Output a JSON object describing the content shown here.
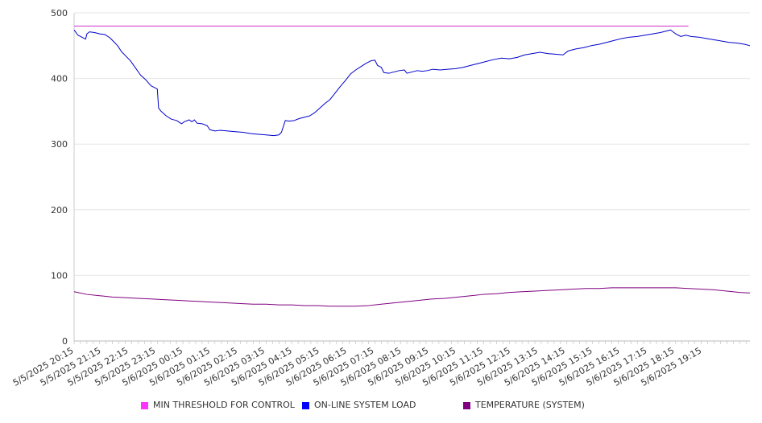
{
  "chart_data": {
    "type": "line",
    "ylim": [
      0,
      500
    ],
    "yticks": [
      0,
      100,
      200,
      300,
      400,
      500
    ],
    "grid": true,
    "legend_position": "bottom",
    "x_labels": [
      "5/5/2025 20:15",
      "5/5/2025 21:15",
      "5/5/2025 22:15",
      "5/5/2025 23:15",
      "5/6/2025 00:15",
      "5/6/2025 01:15",
      "5/6/2025 02:15",
      "5/6/2025 03:15",
      "5/6/2025 04:15",
      "5/6/2025 05:15",
      "5/6/2025 06:15",
      "5/6/2025 07:15",
      "5/6/2025 08:15",
      "5/6/2025 09:15",
      "5/6/2025 10:15",
      "5/6/2025 11:15",
      "5/6/2025 12:15",
      "5/6/2025 13:15",
      "5/6/2025 14:15",
      "5/6/2025 15:15",
      "5/6/2025 16:15",
      "5/6/2025 17:15",
      "5/6/2025 18:15",
      "5/6/2025 19:15"
    ],
    "x_range_hours": [
      0,
      24
    ],
    "series": [
      {
        "name": "MIN THRESHOLD FOR CONTROL",
        "color": "#cc33cc",
        "swatch": "#ff33ff",
        "points": [
          [
            0,
            480
          ],
          [
            24,
            480
          ]
        ]
      },
      {
        "name": "ON-LINE SYSTEM LOAD",
        "color": "#0000cc",
        "swatch": "#0000ff",
        "points": [
          [
            0,
            474
          ],
          [
            0.15,
            466
          ],
          [
            0.3,
            463
          ],
          [
            0.45,
            460
          ],
          [
            0.5,
            468
          ],
          [
            0.6,
            471
          ],
          [
            0.8,
            470
          ],
          [
            1.0,
            468
          ],
          [
            1.2,
            467
          ],
          [
            1.4,
            462
          ],
          [
            1.55,
            456
          ],
          [
            1.7,
            450
          ],
          [
            1.85,
            441
          ],
          [
            2.0,
            435
          ],
          [
            2.2,
            427
          ],
          [
            2.4,
            416
          ],
          [
            2.6,
            405
          ],
          [
            2.8,
            398
          ],
          [
            3.0,
            389
          ],
          [
            3.25,
            384
          ],
          [
            3.3,
            355
          ],
          [
            3.4,
            350
          ],
          [
            3.6,
            343
          ],
          [
            3.8,
            338
          ],
          [
            4.0,
            336
          ],
          [
            4.2,
            331
          ],
          [
            4.3,
            334
          ],
          [
            4.5,
            337
          ],
          [
            4.6,
            334
          ],
          [
            4.7,
            337
          ],
          [
            4.8,
            332
          ],
          [
            5.0,
            331
          ],
          [
            5.2,
            328
          ],
          [
            5.3,
            322
          ],
          [
            5.5,
            320
          ],
          [
            5.7,
            321
          ],
          [
            6.0,
            320
          ],
          [
            6.3,
            319
          ],
          [
            6.6,
            318
          ],
          [
            6.9,
            316
          ],
          [
            7.2,
            315
          ],
          [
            7.5,
            314
          ],
          [
            7.8,
            313
          ],
          [
            8.0,
            314
          ],
          [
            8.1,
            318
          ],
          [
            8.25,
            336
          ],
          [
            8.4,
            335
          ],
          [
            8.6,
            336
          ],
          [
            8.8,
            339
          ],
          [
            9.0,
            341
          ],
          [
            9.2,
            343
          ],
          [
            9.4,
            348
          ],
          [
            9.6,
            355
          ],
          [
            9.8,
            362
          ],
          [
            10.0,
            368
          ],
          [
            10.2,
            378
          ],
          [
            10.4,
            388
          ],
          [
            10.6,
            397
          ],
          [
            10.8,
            407
          ],
          [
            11.0,
            413
          ],
          [
            11.2,
            418
          ],
          [
            11.4,
            423
          ],
          [
            11.6,
            427
          ],
          [
            11.75,
            428
          ],
          [
            11.85,
            420
          ],
          [
            12.0,
            417
          ],
          [
            12.1,
            409
          ],
          [
            12.3,
            408
          ],
          [
            12.5,
            410
          ],
          [
            12.7,
            412
          ],
          [
            12.9,
            413
          ],
          [
            13.0,
            408
          ],
          [
            13.2,
            410
          ],
          [
            13.4,
            412
          ],
          [
            13.6,
            411
          ],
          [
            13.8,
            412
          ],
          [
            14.0,
            414
          ],
          [
            14.3,
            413
          ],
          [
            14.6,
            414
          ],
          [
            14.9,
            415
          ],
          [
            15.2,
            417
          ],
          [
            15.5,
            420
          ],
          [
            15.8,
            423
          ],
          [
            16.1,
            426
          ],
          [
            16.4,
            429
          ],
          [
            16.7,
            431
          ],
          [
            17.0,
            430
          ],
          [
            17.3,
            432
          ],
          [
            17.6,
            436
          ],
          [
            17.9,
            438
          ],
          [
            18.2,
            440
          ],
          [
            18.5,
            438
          ],
          [
            18.8,
            437
          ],
          [
            19.1,
            436
          ],
          [
            19.3,
            442
          ],
          [
            19.6,
            445
          ],
          [
            19.9,
            447
          ],
          [
            20.2,
            450
          ],
          [
            20.5,
            452
          ],
          [
            20.8,
            455
          ],
          [
            21.1,
            458
          ],
          [
            21.4,
            461
          ],
          [
            21.7,
            463
          ],
          [
            22.0,
            464
          ],
          [
            22.3,
            466
          ],
          [
            22.6,
            468
          ],
          [
            22.9,
            470
          ],
          [
            23.1,
            472
          ],
          [
            23.3,
            474
          ],
          [
            23.5,
            468
          ],
          [
            23.7,
            464
          ],
          [
            23.9,
            466
          ],
          [
            24.1,
            464
          ],
          [
            24.4,
            463
          ],
          [
            24.7,
            461
          ],
          [
            25.0,
            459
          ],
          [
            25.3,
            457
          ],
          [
            25.6,
            455
          ],
          [
            25.9,
            454
          ],
          [
            26.2,
            452
          ],
          [
            26.4,
            450
          ]
        ]
      },
      {
        "name": "TEMPERATURE (SYSTEM)",
        "color": "#800080",
        "swatch": "#800080",
        "points": [
          [
            0,
            75
          ],
          [
            0.5,
            71
          ],
          [
            1.0,
            69
          ],
          [
            1.5,
            67
          ],
          [
            2.0,
            66
          ],
          [
            2.5,
            65
          ],
          [
            3.0,
            64
          ],
          [
            3.5,
            63
          ],
          [
            4.0,
            62
          ],
          [
            4.5,
            61
          ],
          [
            5.0,
            60
          ],
          [
            5.5,
            59
          ],
          [
            6.0,
            58
          ],
          [
            6.5,
            57
          ],
          [
            7.0,
            56
          ],
          [
            7.5,
            56
          ],
          [
            8.0,
            55
          ],
          [
            8.5,
            55
          ],
          [
            9.0,
            54
          ],
          [
            9.5,
            54
          ],
          [
            10.0,
            53
          ],
          [
            10.5,
            53
          ],
          [
            11.0,
            53
          ],
          [
            11.5,
            54
          ],
          [
            12.0,
            56
          ],
          [
            12.5,
            58
          ],
          [
            13.0,
            60
          ],
          [
            13.5,
            62
          ],
          [
            14.0,
            64
          ],
          [
            14.5,
            65
          ],
          [
            15.0,
            67
          ],
          [
            15.5,
            69
          ],
          [
            16.0,
            71
          ],
          [
            16.5,
            72
          ],
          [
            17.0,
            74
          ],
          [
            17.5,
            75
          ],
          [
            18.0,
            76
          ],
          [
            18.5,
            77
          ],
          [
            19.0,
            78
          ],
          [
            19.5,
            79
          ],
          [
            20.0,
            80
          ],
          [
            20.5,
            80
          ],
          [
            21.0,
            81
          ],
          [
            21.5,
            81
          ],
          [
            22.0,
            81
          ],
          [
            22.5,
            81
          ],
          [
            23.0,
            81
          ],
          [
            23.5,
            81
          ],
          [
            24.0,
            80
          ],
          [
            24.5,
            79
          ],
          [
            25.0,
            78
          ],
          [
            25.5,
            76
          ],
          [
            26.0,
            74
          ],
          [
            26.4,
            73
          ]
        ]
      }
    ]
  }
}
